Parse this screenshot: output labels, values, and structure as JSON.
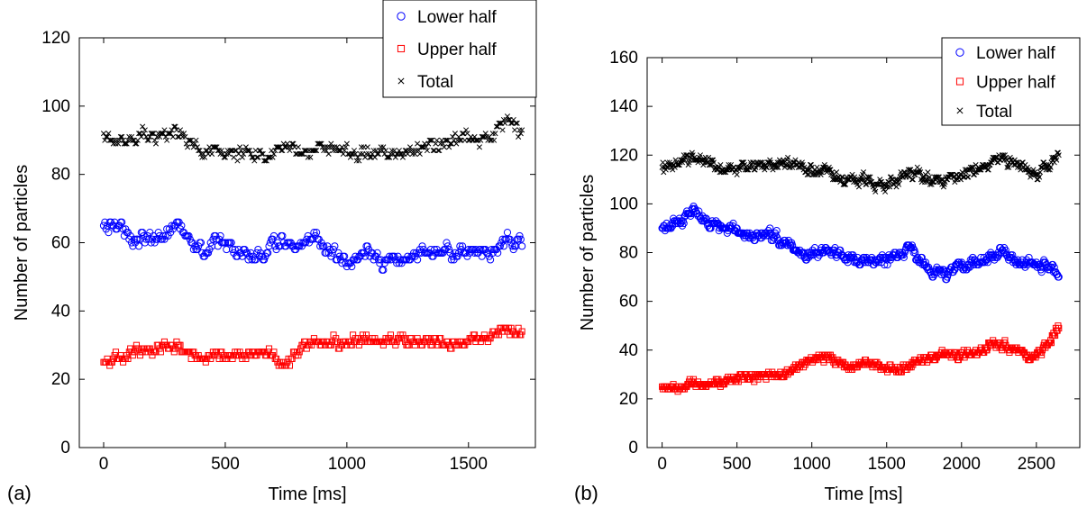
{
  "chart_data": [
    {
      "type": "scatter",
      "panel_label": "(a)",
      "xlabel": "Time [ms]",
      "ylabel": "Number of particles",
      "xlim": [
        -100,
        1775
      ],
      "ylim": [
        0,
        120
      ],
      "xticks": [
        0,
        500,
        1000,
        1500
      ],
      "yticks": [
        0,
        20,
        40,
        60,
        80,
        100,
        120
      ],
      "legend_position": "top-right",
      "x_start": 0,
      "x_end": 1720,
      "series": [
        {
          "name": "Lower half",
          "marker": "circle",
          "color": "#0000ff",
          "keypoints": [
            [
              0,
              65
            ],
            [
              50,
              65
            ],
            [
              100,
              62
            ],
            [
              200,
              61
            ],
            [
              300,
              65
            ],
            [
              380,
              60
            ],
            [
              420,
              57
            ],
            [
              460,
              61
            ],
            [
              500,
              60
            ],
            [
              550,
              56
            ],
            [
              650,
              57
            ],
            [
              700,
              59
            ],
            [
              750,
              60
            ],
            [
              800,
              58
            ],
            [
              880,
              61
            ],
            [
              950,
              56
            ],
            [
              1000,
              54
            ],
            [
              1050,
              56
            ],
            [
              1100,
              57
            ],
            [
              1150,
              53
            ],
            [
              1200,
              54
            ],
            [
              1250,
              56
            ],
            [
              1300,
              57
            ],
            [
              1400,
              58
            ],
            [
              1480,
              58
            ],
            [
              1550,
              57
            ],
            [
              1600,
              58
            ],
            [
              1650,
              62
            ],
            [
              1720,
              60
            ]
          ],
          "jitter": 2.2
        },
        {
          "name": "Upper half",
          "marker": "square",
          "color": "#ff0000",
          "keypoints": [
            [
              0,
              25
            ],
            [
              50,
              26
            ],
            [
              150,
              28
            ],
            [
              250,
              29
            ],
            [
              300,
              29
            ],
            [
              350,
              28
            ],
            [
              400,
              27
            ],
            [
              450,
              26
            ],
            [
              550,
              27
            ],
            [
              650,
              28
            ],
            [
              700,
              27
            ],
            [
              740,
              24
            ],
            [
              800,
              28
            ],
            [
              850,
              30
            ],
            [
              900,
              31
            ],
            [
              1000,
              31
            ],
            [
              1100,
              32
            ],
            [
              1200,
              31
            ],
            [
              1300,
              31
            ],
            [
              1400,
              31
            ],
            [
              1500,
              31
            ],
            [
              1600,
              33
            ],
            [
              1650,
              35
            ],
            [
              1720,
              33
            ]
          ],
          "jitter": 1.6
        },
        {
          "name": "Total",
          "marker": "x",
          "color": "#000000",
          "keypoints": [
            [
              0,
              90
            ],
            [
              100,
              90
            ],
            [
              200,
              91
            ],
            [
              300,
              92
            ],
            [
              350,
              89
            ],
            [
              400,
              87
            ],
            [
              500,
              87
            ],
            [
              600,
              86
            ],
            [
              700,
              86
            ],
            [
              800,
              87
            ],
            [
              900,
              88
            ],
            [
              1000,
              86
            ],
            [
              1100,
              87
            ],
            [
              1200,
              87
            ],
            [
              1300,
              88
            ],
            [
              1400,
              89
            ],
            [
              1500,
              90
            ],
            [
              1600,
              92
            ],
            [
              1650,
              95
            ],
            [
              1720,
              93
            ]
          ],
          "jitter": 2.4
        }
      ]
    },
    {
      "type": "scatter",
      "panel_label": "(b)",
      "xlabel": "Time [ms]",
      "ylabel": "Number of particles",
      "xlim": [
        -100,
        2790
      ],
      "ylim": [
        0,
        160
      ],
      "xticks": [
        0,
        500,
        1000,
        1500,
        2000,
        2500
      ],
      "yticks": [
        0,
        20,
        40,
        60,
        80,
        100,
        120,
        140,
        160
      ],
      "legend_position": "top-right",
      "x_start": 0,
      "x_end": 2650,
      "series": [
        {
          "name": "Lower half",
          "marker": "circle",
          "color": "#0000ff",
          "keypoints": [
            [
              0,
              90
            ],
            [
              100,
              92
            ],
            [
              200,
              98
            ],
            [
              300,
              93
            ],
            [
              400,
              89
            ],
            [
              500,
              88
            ],
            [
              600,
              86
            ],
            [
              700,
              88
            ],
            [
              800,
              85
            ],
            [
              900,
              82
            ],
            [
              1000,
              79
            ],
            [
              1100,
              81
            ],
            [
              1200,
              78
            ],
            [
              1300,
              76
            ],
            [
              1400,
              77
            ],
            [
              1500,
              78
            ],
            [
              1600,
              79
            ],
            [
              1650,
              84
            ],
            [
              1700,
              78
            ],
            [
              1800,
              74
            ],
            [
              1900,
              71
            ],
            [
              2000,
              75
            ],
            [
              2100,
              76
            ],
            [
              2200,
              78
            ],
            [
              2300,
              80
            ],
            [
              2400,
              75
            ],
            [
              2500,
              76
            ],
            [
              2600,
              73
            ],
            [
              2650,
              70
            ]
          ],
          "jitter": 2.2
        },
        {
          "name": "Upper half",
          "marker": "square",
          "color": "#ff0000",
          "keypoints": [
            [
              0,
              24
            ],
            [
              100,
              25
            ],
            [
              200,
              26
            ],
            [
              300,
              26
            ],
            [
              400,
              27
            ],
            [
              500,
              28
            ],
            [
              600,
              29
            ],
            [
              700,
              30
            ],
            [
              800,
              30
            ],
            [
              900,
              33
            ],
            [
              1000,
              36
            ],
            [
              1100,
              37
            ],
            [
              1200,
              34
            ],
            [
              1300,
              33
            ],
            [
              1400,
              35
            ],
            [
              1500,
              32
            ],
            [
              1600,
              32
            ],
            [
              1700,
              35
            ],
            [
              1800,
              37
            ],
            [
              1900,
              38
            ],
            [
              2000,
              38
            ],
            [
              2100,
              39
            ],
            [
              2200,
              42
            ],
            [
              2300,
              41
            ],
            [
              2400,
              40
            ],
            [
              2450,
              36
            ],
            [
              2500,
              38
            ],
            [
              2600,
              45
            ],
            [
              2650,
              50
            ]
          ],
          "jitter": 1.8
        },
        {
          "name": "Total",
          "marker": "x",
          "color": "#000000",
          "keypoints": [
            [
              0,
              114
            ],
            [
              100,
              117
            ],
            [
              200,
              120
            ],
            [
              300,
              117
            ],
            [
              400,
              115
            ],
            [
              500,
              114
            ],
            [
              600,
              116
            ],
            [
              700,
              115
            ],
            [
              800,
              116
            ],
            [
              900,
              115
            ],
            [
              1000,
              114
            ],
            [
              1100,
              113
            ],
            [
              1200,
              110
            ],
            [
              1300,
              110
            ],
            [
              1400,
              109
            ],
            [
              1500,
              108
            ],
            [
              1600,
              111
            ],
            [
              1700,
              112
            ],
            [
              1800,
              109
            ],
            [
              1900,
              110
            ],
            [
              2000,
              112
            ],
            [
              2100,
              114
            ],
            [
              2200,
              118
            ],
            [
              2300,
              118
            ],
            [
              2400,
              116
            ],
            [
              2500,
              112
            ],
            [
              2600,
              117
            ],
            [
              2650,
              120
            ]
          ],
          "jitter": 2.6
        }
      ]
    }
  ]
}
